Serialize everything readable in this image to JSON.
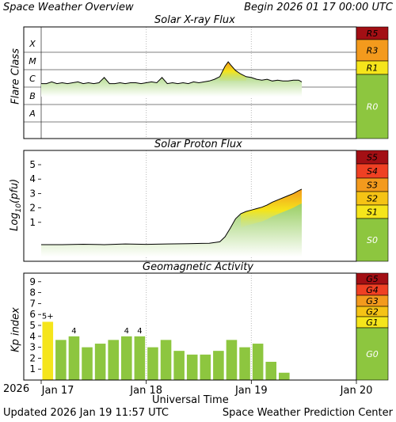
{
  "header": {
    "title": "Space Weather Overview",
    "begin": "Begin 2026 01 17 00:00 UTC"
  },
  "footer": {
    "updated": "Updated 2026 Jan 19 11:57 UTC",
    "center": "Space Weather Prediction Center",
    "xaxis_title": "Universal Time",
    "year": "2026",
    "date_ticks": [
      "Jan 17",
      "Jan 18",
      "Jan 19",
      "Jan 20"
    ]
  },
  "colors": {
    "green": "#8dc63f",
    "yellow": "#f5e51b",
    "gold": "#f5c315",
    "orange": "#f39a1d",
    "red_orange": "#ef4023",
    "red": "#c0141a",
    "dark_red": "#a30f14"
  },
  "chart_data": [
    {
      "type": "area",
      "title": "Solar X-ray Flux",
      "ylabel": "Flare Class",
      "flare_classes": [
        "X",
        "M",
        "C",
        "B",
        "A"
      ],
      "scale_labels": [
        "R5",
        "R3",
        "R1",
        "R0"
      ],
      "x_start_day": 0,
      "x_end_day": 3,
      "x_days": [
        0.0,
        0.05,
        0.1,
        0.15,
        0.2,
        0.25,
        0.3,
        0.35,
        0.4,
        0.45,
        0.5,
        0.55,
        0.6,
        0.65,
        0.7,
        0.75,
        0.8,
        0.85,
        0.9,
        0.95,
        1.0,
        1.05,
        1.1,
        1.15,
        1.2,
        1.25,
        1.3,
        1.35,
        1.4,
        1.45,
        1.5,
        1.55,
        1.6,
        1.65,
        1.7,
        1.75,
        1.78,
        1.8,
        1.85,
        1.9,
        1.95,
        2.0,
        2.05,
        2.1,
        2.15,
        2.2,
        2.25,
        2.3,
        2.35,
        2.4,
        2.45,
        2.48
      ],
      "log_flux": [
        -5.8,
        -5.8,
        -5.7,
        -5.8,
        -5.75,
        -5.8,
        -5.75,
        -5.7,
        -5.8,
        -5.75,
        -5.8,
        -5.75,
        -5.45,
        -5.8,
        -5.8,
        -5.75,
        -5.8,
        -5.75,
        -5.75,
        -5.8,
        -5.75,
        -5.7,
        -5.75,
        -5.45,
        -5.8,
        -5.75,
        -5.8,
        -5.75,
        -5.8,
        -5.7,
        -5.75,
        -5.7,
        -5.65,
        -5.55,
        -5.4,
        -4.8,
        -4.55,
        -4.7,
        -5.05,
        -5.25,
        -5.4,
        -5.45,
        -5.55,
        -5.6,
        -5.55,
        -5.65,
        -5.6,
        -5.65,
        -5.65,
        -5.6,
        -5.6,
        -5.7
      ]
    },
    {
      "type": "area",
      "title": "Solar Proton Flux",
      "ylabel": "Log10(pfu)",
      "ylabel_main": "Log",
      "ylabel_sub": "10",
      "ylabel_end": "(pfu)",
      "yticks": [
        "5",
        "4",
        "3",
        "2",
        "1"
      ],
      "ylim": [
        0,
        5.6
      ],
      "scale_labels": [
        "S5",
        "S4",
        "S3",
        "S2",
        "S1",
        "S0"
      ],
      "x_days": [
        0.0,
        0.2,
        0.4,
        0.6,
        0.8,
        1.0,
        1.2,
        1.4,
        1.6,
        1.7,
        1.75,
        1.8,
        1.85,
        1.9,
        1.95,
        2.0,
        2.05,
        2.1,
        2.15,
        2.2,
        2.25,
        2.3,
        2.35,
        2.4,
        2.45,
        2.48
      ],
      "log_pfu": [
        -0.55,
        -0.55,
        -0.52,
        -0.55,
        -0.5,
        -0.53,
        -0.5,
        -0.48,
        -0.45,
        -0.35,
        0.0,
        0.6,
        1.25,
        1.6,
        1.75,
        1.85,
        1.95,
        2.05,
        2.2,
        2.4,
        2.55,
        2.7,
        2.85,
        3.0,
        3.2,
        3.3
      ]
    },
    {
      "type": "bar",
      "title": "Geomagnetic Activity",
      "ylabel": "Kp index",
      "yticks": [
        "9",
        "8",
        "7",
        "6",
        "5",
        "4",
        "3",
        "2",
        "1"
      ],
      "ylim": [
        0,
        9.67
      ],
      "scale_labels": [
        "G5",
        "G4",
        "G3",
        "G2",
        "G1",
        "G0"
      ],
      "values": [
        5.33,
        3.67,
        4.0,
        3.0,
        3.33,
        3.67,
        4.0,
        4.0,
        3.0,
        3.67,
        2.67,
        2.33,
        2.33,
        2.67,
        3.67,
        3.0,
        3.33,
        1.67,
        0.67
      ],
      "bar_labels": [
        "5+",
        "",
        "4",
        "",
        "",
        "",
        "4",
        "4",
        "",
        "",
        "",
        "",
        "",
        "",
        "",
        "",
        "",
        "",
        ""
      ]
    }
  ]
}
